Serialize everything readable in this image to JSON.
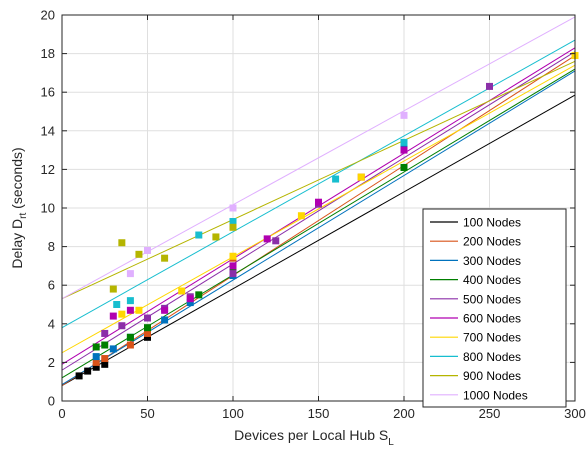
{
  "chart_data": {
    "type": "scatter",
    "xlabel_main": "Devices per Local Hub S",
    "xlabel_sub": "L",
    "ylabel_main": "Delay D",
    "ylabel_sub": "rt",
    "ylabel_unit": " (seconds)",
    "xlim": [
      0,
      300
    ],
    "ylim": [
      0,
      20
    ],
    "xticks": [
      0,
      50,
      100,
      150,
      200,
      250,
      300
    ],
    "yticks": [
      0,
      2,
      4,
      6,
      8,
      10,
      12,
      14,
      16,
      18,
      20
    ],
    "grid": true,
    "legend_position": "bottom-right",
    "series": [
      {
        "name": "100 Nodes",
        "color": "#000000",
        "points": [
          [
            10,
            1.3
          ],
          [
            15,
            1.55
          ],
          [
            20,
            1.75
          ],
          [
            25,
            1.9
          ],
          [
            50,
            3.3
          ]
        ],
        "line": [
          [
            0,
            0.8
          ],
          [
            300,
            15.85
          ]
        ]
      },
      {
        "name": "200 Nodes",
        "color": "#d95319",
        "points": [
          [
            20,
            2.0
          ],
          [
            25,
            2.2
          ],
          [
            40,
            2.9
          ],
          [
            50,
            3.5
          ],
          [
            100,
            7.4
          ],
          [
            175,
            11.6
          ]
        ],
        "line": [
          [
            0,
            0.8
          ],
          [
            300,
            17.9
          ]
        ]
      },
      {
        "name": "300 Nodes",
        "color": "#0072bd",
        "points": [
          [
            20,
            2.3
          ],
          [
            30,
            2.7
          ],
          [
            40,
            3.3
          ],
          [
            60,
            4.2
          ],
          [
            75,
            5.1
          ],
          [
            100,
            6.5
          ],
          [
            200,
            13.2
          ]
        ],
        "line": [
          [
            0,
            0.85
          ],
          [
            300,
            17.1
          ]
        ]
      },
      {
        "name": "400 Nodes",
        "color": "#007f00",
        "points": [
          [
            20,
            2.8
          ],
          [
            25,
            2.9
          ],
          [
            40,
            3.3
          ],
          [
            50,
            3.8
          ],
          [
            80,
            5.5
          ],
          [
            100,
            6.9
          ],
          [
            200,
            12.1
          ]
        ],
        "line": [
          [
            0,
            1.2
          ],
          [
            300,
            17.2
          ]
        ]
      },
      {
        "name": "500 Nodes",
        "color": "#8b2fa8",
        "points": [
          [
            25,
            3.5
          ],
          [
            35,
            3.9
          ],
          [
            50,
            4.3
          ],
          [
            60,
            4.8
          ],
          [
            75,
            5.4
          ],
          [
            100,
            6.6
          ],
          [
            125,
            8.3
          ],
          [
            150,
            10.2
          ],
          [
            250,
            16.3
          ]
        ],
        "line": [
          [
            0,
            1.6
          ],
          [
            300,
            18.1
          ]
        ]
      },
      {
        "name": "600 Nodes",
        "color": "#b000b0",
        "points": [
          [
            30,
            4.4
          ],
          [
            40,
            4.7
          ],
          [
            60,
            4.7
          ],
          [
            75,
            5.3
          ],
          [
            100,
            7.0
          ],
          [
            120,
            8.4
          ],
          [
            150,
            10.3
          ],
          [
            200,
            13.0
          ]
        ],
        "line": [
          [
            0,
            1.9
          ],
          [
            300,
            18.3
          ]
        ]
      },
      {
        "name": "700 Nodes",
        "color": "#ffd700",
        "points": [
          [
            35,
            4.5
          ],
          [
            45,
            4.7
          ],
          [
            70,
            5.7
          ],
          [
            100,
            7.5
          ],
          [
            140,
            9.6
          ],
          [
            175,
            11.6
          ],
          [
            300,
            17.9
          ]
        ],
        "line": [
          [
            0,
            2.5
          ],
          [
            300,
            17.4
          ]
        ]
      },
      {
        "name": "800 Nodes",
        "color": "#17becf",
        "points": [
          [
            32,
            5.0
          ],
          [
            40,
            5.2
          ],
          [
            80,
            8.6
          ],
          [
            100,
            9.3
          ],
          [
            160,
            11.5
          ],
          [
            200,
            13.4
          ]
        ],
        "line": [
          [
            0,
            3.8
          ],
          [
            300,
            18.7
          ]
        ]
      },
      {
        "name": "900 Nodes",
        "color": "#b5b500",
        "points": [
          [
            30,
            5.8
          ],
          [
            35,
            8.2
          ],
          [
            45,
            7.6
          ],
          [
            60,
            7.4
          ],
          [
            90,
            8.5
          ],
          [
            100,
            9.0
          ]
        ],
        "line": [
          [
            0,
            5.3
          ],
          [
            300,
            17.6
          ]
        ]
      },
      {
        "name": "1000 Nodes",
        "color": "#e0b0ff",
        "points": [
          [
            40,
            6.6
          ],
          [
            50,
            7.8
          ],
          [
            100,
            10.0
          ],
          [
            200,
            14.8
          ]
        ],
        "line": [
          [
            0,
            5.3
          ],
          [
            300,
            19.9
          ]
        ]
      }
    ]
  }
}
